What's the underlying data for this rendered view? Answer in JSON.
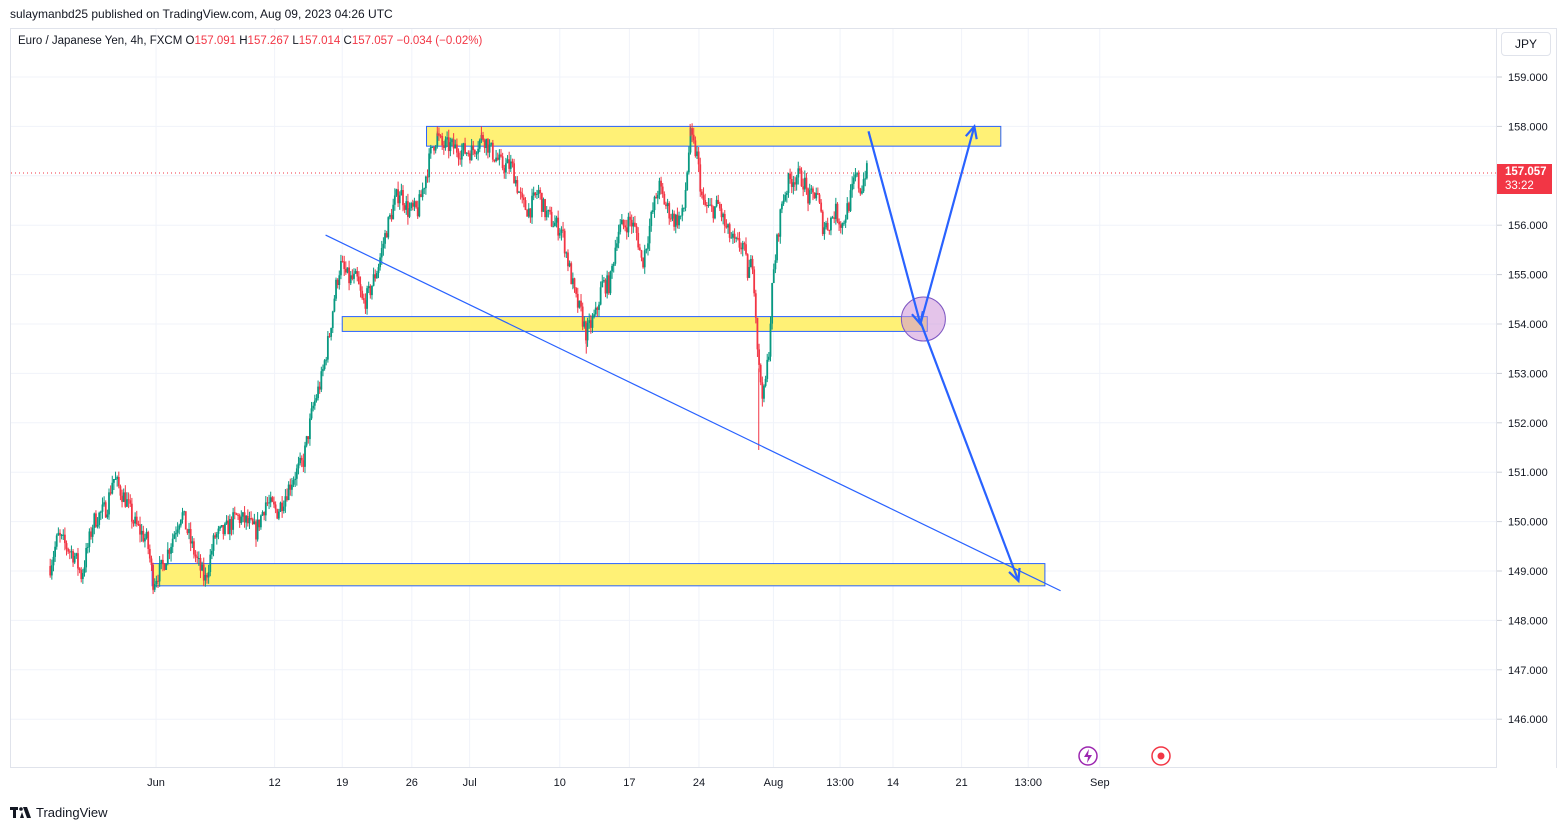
{
  "header": {
    "publisher_line": "sulaymanbd25 published on TradingView.com, Aug 09, 2023 04:26 UTC"
  },
  "legend": {
    "symbol": "Euro / Japanese Yen, 4h, FXCM",
    "open_label": "O",
    "open": "157.091",
    "high_label": "H",
    "high": "157.267",
    "low_label": "L",
    "low": "157.014",
    "close_label": "C",
    "close": "157.057",
    "change": "−0.034 (−0.02%)"
  },
  "currency": "JPY",
  "price_badge": {
    "price": "157.057",
    "countdown": "33:22"
  },
  "footer": {
    "brand": "TradingView"
  },
  "colors": {
    "up": "#089981",
    "down": "#f23645",
    "zone_fill": "#fff176",
    "zone_border": "#2962ff",
    "drawing": "#2962ff",
    "grid": "#f0f3fa"
  },
  "chart_data": {
    "type": "candlestick",
    "symbol": "EURJPY",
    "timeframe": "4h",
    "ylim": [
      145.0,
      159.7
    ],
    "y_ticks": [
      "159.000",
      "158.000",
      "157.000",
      "156.000",
      "155.000",
      "154.000",
      "153.000",
      "152.000",
      "151.000",
      "150.000",
      "149.000",
      "148.000",
      "147.000",
      "146.000"
    ],
    "x_ticks": [
      "Jun",
      "12",
      "19",
      "26",
      "Jul",
      "10",
      "17",
      "24",
      "Aug",
      "13:00",
      "14",
      "21",
      "13:00",
      "Sep"
    ],
    "x_tick_days": [
      -0.2,
      11.9,
      18.8,
      25.9,
      31.8,
      41.0,
      48.1,
      55.2,
      62.8,
      69.6,
      75.0,
      82.0,
      88.8,
      96.1
    ],
    "x_units": "days since 2023-06-01",
    "last_price": 157.057,
    "anchors": [
      [
        -11.0,
        149.1
      ],
      [
        -10.2,
        149.7
      ],
      [
        -8.5,
        149.3
      ],
      [
        -7.8,
        148.9
      ],
      [
        -6.6,
        150.0
      ],
      [
        -5.2,
        150.3
      ],
      [
        -4.6,
        150.9
      ],
      [
        -4.3,
        150.8
      ],
      [
        -3.2,
        150.4
      ],
      [
        -2.5,
        150.0
      ],
      [
        -1.1,
        149.6
      ],
      [
        -0.5,
        148.8
      ],
      [
        0.5,
        149.1
      ],
      [
        1.7,
        149.8
      ],
      [
        2.4,
        150.2
      ],
      [
        3.3,
        149.6
      ],
      [
        4.0,
        149.2
      ],
      [
        4.8,
        148.8
      ],
      [
        5.8,
        149.7
      ],
      [
        6.8,
        149.8
      ],
      [
        8.0,
        150.1
      ],
      [
        9.0,
        150.0
      ],
      [
        10.0,
        149.8
      ],
      [
        11.0,
        150.4
      ],
      [
        12.2,
        150.2
      ],
      [
        13.8,
        150.9
      ],
      [
        14.8,
        151.2
      ],
      [
        15.8,
        152.3
      ],
      [
        16.7,
        152.9
      ],
      [
        17.5,
        153.8
      ],
      [
        18.1,
        154.7
      ],
      [
        18.6,
        155.2
      ],
      [
        19.5,
        154.9
      ],
      [
        20.3,
        154.9
      ],
      [
        20.9,
        154.4
      ],
      [
        21.5,
        154.6
      ],
      [
        22.5,
        155.2
      ],
      [
        23.3,
        155.9
      ],
      [
        24.2,
        156.5
      ],
      [
        24.7,
        156.7
      ],
      [
        25.5,
        156.3
      ],
      [
        26.5,
        156.3
      ],
      [
        27.1,
        156.8
      ],
      [
        28.0,
        157.6
      ],
      [
        28.5,
        157.8
      ],
      [
        29.0,
        157.6
      ],
      [
        29.9,
        157.6
      ],
      [
        31.0,
        157.5
      ],
      [
        32.0,
        157.5
      ],
      [
        33.2,
        157.8
      ],
      [
        34.0,
        157.5
      ],
      [
        35.1,
        157.2
      ],
      [
        36.1,
        157.2
      ],
      [
        37.2,
        156.4
      ],
      [
        37.9,
        156.3
      ],
      [
        38.8,
        156.7
      ],
      [
        39.4,
        156.3
      ],
      [
        40.1,
        156.1
      ],
      [
        41.2,
        155.9
      ],
      [
        42.1,
        155.0
      ],
      [
        42.6,
        154.5
      ],
      [
        43.2,
        154.2
      ],
      [
        43.7,
        153.8
      ],
      [
        44.7,
        154.2
      ],
      [
        45.3,
        154.8
      ],
      [
        46.1,
        154.8
      ],
      [
        46.9,
        155.9
      ],
      [
        47.6,
        156.0
      ],
      [
        48.2,
        156.1
      ],
      [
        48.9,
        155.8
      ],
      [
        49.4,
        155.2
      ],
      [
        50.5,
        156.3
      ],
      [
        51.1,
        156.8
      ],
      [
        51.8,
        156.4
      ],
      [
        52.7,
        156.1
      ],
      [
        53.6,
        156.2
      ],
      [
        54.3,
        157.8
      ],
      [
        55.0,
        157.4
      ],
      [
        55.6,
        156.4
      ],
      [
        56.5,
        156.3
      ],
      [
        57.2,
        156.4
      ],
      [
        58.0,
        155.9
      ],
      [
        58.9,
        155.6
      ],
      [
        59.7,
        155.6
      ],
      [
        60.2,
        155.0
      ],
      [
        60.7,
        155.3
      ],
      [
        61.3,
        153.1
      ],
      [
        61.8,
        152.5
      ],
      [
        62.3,
        153.4
      ],
      [
        62.7,
        154.8
      ],
      [
        63.3,
        155.9
      ],
      [
        63.7,
        156.5
      ],
      [
        64.4,
        156.9
      ],
      [
        65.2,
        157.0
      ],
      [
        65.9,
        156.9
      ],
      [
        66.4,
        156.5
      ],
      [
        67.2,
        156.7
      ],
      [
        67.8,
        156.0
      ],
      [
        68.4,
        156.0
      ],
      [
        69.1,
        156.3
      ],
      [
        69.8,
        156.0
      ],
      [
        70.6,
        156.5
      ],
      [
        71.2,
        157.0
      ],
      [
        71.7,
        156.7
      ],
      [
        72.2,
        157.1
      ],
      [
        72.4,
        157.06
      ]
    ],
    "zones": [
      {
        "name": "resistance",
        "y_low": 157.6,
        "y_high": 158.0,
        "x_start": 27.4,
        "x_end": 86.0
      },
      {
        "name": "support",
        "y_low": 153.85,
        "y_high": 154.15,
        "x_start": 18.8,
        "x_end": 78.5
      },
      {
        "name": "target",
        "y_low": 148.7,
        "y_high": 149.15,
        "x_start": -0.6,
        "x_end": 90.5
      }
    ],
    "trendline": {
      "from": [
        17.1,
        155.8
      ],
      "to": [
        92.1,
        148.6
      ]
    },
    "projection_path": [
      [
        72.5,
        157.9
      ],
      [
        77.8,
        154.0
      ],
      [
        83.3,
        158.0
      ]
    ],
    "projection_path_2": [
      [
        77.7,
        154.1
      ],
      [
        87.8,
        148.8
      ]
    ],
    "highlight_circle": {
      "x": 78.1,
      "y": 154.1
    }
  }
}
